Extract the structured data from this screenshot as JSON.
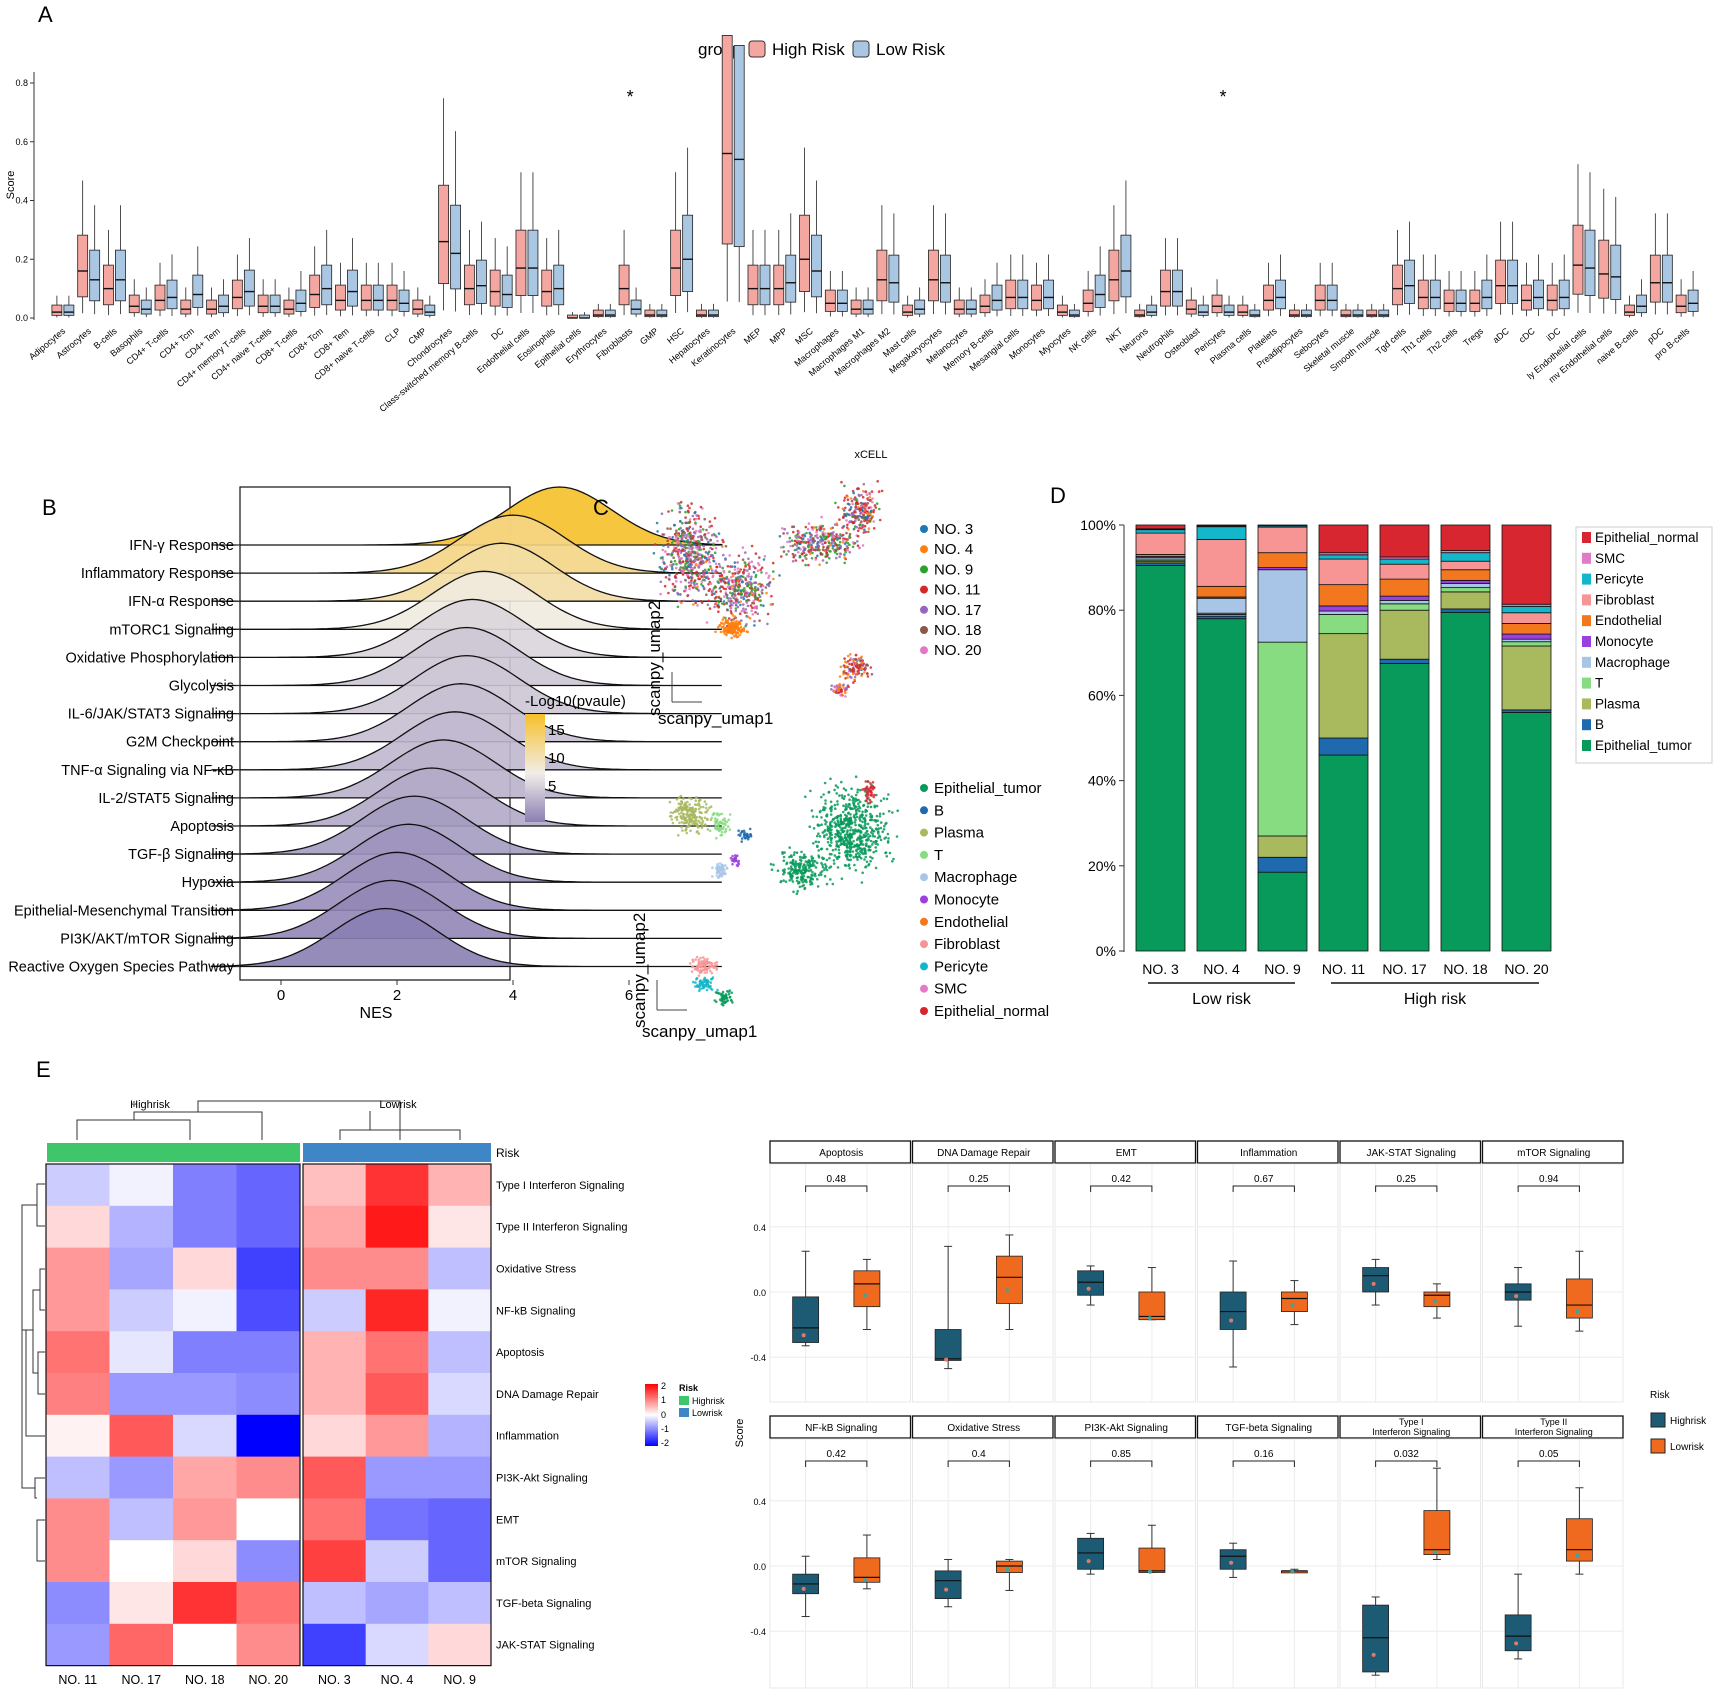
{
  "panel_labels": [
    "A",
    "B",
    "C",
    "D",
    "E"
  ],
  "colors": {
    "high_risk": "#f4a6a0",
    "low_risk": "#a9c6e3",
    "highrisk_dark": "#1d5b74",
    "lowrisk_orange": "#ef6a1e",
    "risk_green": "#3fc66a",
    "risk_blue": "#3f86c6"
  },
  "chart_data": [
    {
      "id": "A",
      "type": "box",
      "legend_title": "group",
      "legend": [
        "High Risk",
        "Low Risk"
      ],
      "ylabel": "Score",
      "xlabel": "xCELL",
      "ylim": [
        0,
        0.8
      ],
      "yticks": [
        "0.0",
        "0.2",
        "0.4",
        "0.6",
        "0.8"
      ],
      "significance_marker": "*",
      "significant": [
        "Fibroblasts",
        "Pericytes"
      ],
      "categories": [
        "Adipocytes",
        "Astrocytes",
        "B-cells",
        "Basophils",
        "CD4+ T-cells",
        "CD4+ Tcm",
        "CD4+ Tem",
        "CD4+ memory T-cells",
        "CD4+ naive T-cells",
        "CD8+ T-cells",
        "CD8+ Tcm",
        "CD8+ Tem",
        "CD8+ naive T-cells",
        "CLP",
        "CMP",
        "Chondrocytes",
        "Class-switched memory B-cells",
        "DC",
        "Endothelial cells",
        "Eosinophils",
        "Epithelial cells",
        "Erythrocytes",
        "Fibroblasts",
        "GMP",
        "HSC",
        "Hepatocytes",
        "Keratinocytes",
        "MEP",
        "MPP",
        "MSC",
        "Macrophages",
        "Macrophages M1",
        "Macrophages M2",
        "Mast cells",
        "Megakaryocytes",
        "Melanocytes",
        "Memory B-cells",
        "Mesangial cells",
        "Monocytes",
        "Myocytes",
        "NK cells",
        "NKT",
        "Neurons",
        "Neutrophils",
        "Osteoblast",
        "Pericytes",
        "Plasma cells",
        "Platelets",
        "Preadipocytes",
        "Sebocytes",
        "Skeletal muscle",
        "Smooth muscle",
        "Tgd cells",
        "Th1 cells",
        "Th2 cells",
        "Tregs",
        "aDC",
        "cDC",
        "iDC",
        "ly Endothelial cells",
        "mv Endothelial cells",
        "naive B-cells",
        "pDC",
        "pro B-cells"
      ],
      "median_high": [
        0.02,
        0.16,
        0.1,
        0.04,
        0.06,
        0.03,
        0.03,
        0.07,
        0.04,
        0.03,
        0.08,
        0.06,
        0.06,
        0.06,
        0.03,
        0.26,
        0.1,
        0.09,
        0.17,
        0.09,
        0.0,
        0.01,
        0.1,
        0.01,
        0.17,
        0.01,
        0.56,
        0.1,
        0.1,
        0.2,
        0.05,
        0.03,
        0.13,
        0.02,
        0.13,
        0.03,
        0.04,
        0.07,
        0.06,
        0.02,
        0.05,
        0.13,
        0.01,
        0.09,
        0.03,
        0.04,
        0.02,
        0.06,
        0.01,
        0.06,
        0.01,
        0.01,
        0.1,
        0.07,
        0.05,
        0.05,
        0.11,
        0.06,
        0.06,
        0.18,
        0.15,
        0.02,
        0.12,
        0.04
      ],
      "median_low": [
        0.02,
        0.13,
        0.13,
        0.03,
        0.07,
        0.08,
        0.04,
        0.09,
        0.04,
        0.05,
        0.1,
        0.09,
        0.06,
        0.05,
        0.02,
        0.22,
        0.11,
        0.08,
        0.17,
        0.1,
        0.0,
        0.01,
        0.03,
        0.01,
        0.2,
        0.01,
        0.54,
        0.1,
        0.12,
        0.16,
        0.05,
        0.03,
        0.12,
        0.03,
        0.12,
        0.03,
        0.06,
        0.07,
        0.07,
        0.01,
        0.08,
        0.16,
        0.02,
        0.09,
        0.02,
        0.02,
        0.01,
        0.07,
        0.01,
        0.06,
        0.01,
        0.01,
        0.11,
        0.07,
        0.05,
        0.07,
        0.11,
        0.07,
        0.07,
        0.17,
        0.14,
        0.04,
        0.12,
        0.05
      ]
    },
    {
      "id": "B",
      "type": "ridgeline",
      "xlabel": "NES",
      "xticks": [
        "0",
        "2",
        "4",
        "6"
      ],
      "colorbar_title": "-Log10(pvaule)",
      "colorbar_ticks": [
        "15",
        "10",
        "5"
      ],
      "categories": [
        "IFN-γ Response",
        "Inflammatory Response",
        "IFN-α Response",
        "mTORC1 Signaling",
        "Oxidative Phosphorylation",
        "Glycolysis",
        "IL-6/JAK/STAT3 Signaling",
        "G2M Checkpoint",
        "TNF-α Signaling via NF-κB",
        "IL-2/STAT5 Signaling",
        "Apoptosis",
        "TGF-β Signaling",
        "Hypoxia",
        "Epithelial-Mesenchymal Transition",
        "PI3K/AKT/mTOR Signaling",
        "Reactive Oxygen Species Pathway"
      ],
      "peak_nes": [
        4.8,
        4.0,
        3.8,
        3.5,
        3.3,
        3.2,
        3.2,
        3.1,
        3.0,
        2.8,
        2.6,
        2.3,
        2.2,
        2.0,
        1.9,
        1.8
      ],
      "neglog10p": [
        17,
        14,
        13,
        11,
        9,
        8,
        8,
        7.5,
        7,
        6.5,
        6,
        5,
        4.5,
        4,
        3.5,
        3
      ]
    },
    {
      "id": "C",
      "type": "scatter",
      "xlabel": "scanpy_umap1",
      "ylabel": "scanpy_umap2",
      "legend_samples": [
        "NO. 3",
        "NO. 4",
        "NO. 9",
        "NO. 11",
        "NO. 17",
        "NO. 18",
        "NO. 20"
      ],
      "legend_celltypes": [
        "Epithelial_tumor",
        "B",
        "Plasma",
        "T",
        "Macrophage",
        "Monocyte",
        "Endothelial",
        "Fibroblast",
        "Pericyte",
        "SMC",
        "Epithelial_normal"
      ]
    },
    {
      "id": "D",
      "type": "bar",
      "stacked": true,
      "categories": [
        "NO. 3",
        "NO. 4",
        "NO. 9",
        "NO. 11",
        "NO. 17",
        "NO. 18",
        "NO. 20"
      ],
      "groups": [
        {
          "label": "Low risk",
          "members": [
            "NO. 3",
            "NO. 4",
            "NO. 9"
          ]
        },
        {
          "label": "High risk",
          "members": [
            "NO. 11",
            "NO. 17",
            "NO. 18",
            "NO. 20"
          ]
        }
      ],
      "yticks": [
        "0%",
        "20%",
        "40%",
        "60%",
        "80%",
        "100%"
      ],
      "ylim": [
        0,
        100
      ],
      "legend_order": [
        "Epithelial_normal",
        "SMC",
        "Pericyte",
        "Fibroblast",
        "Endothelial",
        "Monocyte",
        "Macrophage",
        "T",
        "Plasma",
        "B",
        "Epithelial_tumor"
      ],
      "series": [
        {
          "name": "Epithelial_tumor",
          "color": "#079a5a",
          "values": [
            90.5,
            78.0,
            18.5,
            46.0,
            67.5,
            79.5,
            56.0
          ]
        },
        {
          "name": "B",
          "color": "#1f6aae",
          "values": [
            0.6,
            0.6,
            3.5,
            4.0,
            1.0,
            0.8,
            0.6
          ]
        },
        {
          "name": "Plasma",
          "color": "#a8b95e",
          "values": [
            0.4,
            0.4,
            5.0,
            24.5,
            11.5,
            4.0,
            15.0
          ]
        },
        {
          "name": "T",
          "color": "#87db80",
          "values": [
            0.3,
            0.3,
            45.5,
            4.5,
            1.5,
            1.0,
            1.0
          ]
        },
        {
          "name": "Macrophage",
          "color": "#a8c5e8",
          "values": [
            0.5,
            3.5,
            17.0,
            0.8,
            0.8,
            1.0,
            0.6
          ]
        },
        {
          "name": "Monocyte",
          "color": "#9b3fe0",
          "values": [
            0.3,
            0.3,
            0.5,
            1.2,
            1.0,
            0.7,
            1.2
          ]
        },
        {
          "name": "Endothelial",
          "color": "#f2771f",
          "values": [
            0.5,
            2.5,
            3.5,
            5.0,
            4.0,
            2.5,
            2.5
          ]
        },
        {
          "name": "Fibroblast",
          "color": "#f79494",
          "values": [
            5.0,
            11.0,
            6.0,
            6.0,
            3.5,
            2.0,
            2.5
          ]
        },
        {
          "name": "Pericyte",
          "color": "#14b6c9",
          "values": [
            0.8,
            3.0,
            0.3,
            1.0,
            1.2,
            2.0,
            1.5
          ]
        },
        {
          "name": "SMC",
          "color": "#e17ac8",
          "values": [
            0.2,
            0.2,
            0.2,
            0.5,
            0.5,
            0.5,
            0.5
          ]
        },
        {
          "name": "Epithelial_normal",
          "color": "#d82631",
          "values": [
            0.9,
            0.2,
            0.0,
            6.5,
            7.5,
            6.0,
            18.6
          ]
        }
      ]
    },
    {
      "id": "E-heatmap",
      "type": "heatmap",
      "columns": [
        "NO. 11",
        "NO. 17",
        "NO. 18",
        "NO. 20",
        "NO. 3",
        "NO. 4",
        "NO. 9"
      ],
      "column_groups": [
        {
          "label": "Highrisk",
          "span": 4
        },
        {
          "label": "Lowrisk",
          "span": 3
        }
      ],
      "annotation_label": "Risk",
      "rows": [
        "Type I Interferon Signaling",
        "Type II Interferon Signaling",
        "Oxidative Stress",
        "NF-kB Signaling",
        "Apoptosis",
        "DNA Damage Repair",
        "Inflammation",
        "PI3K-Akt Signaling",
        "EMT",
        "mTOR Signaling",
        "TGF-beta Signaling",
        "JAK-STAT Signaling"
      ],
      "values": [
        [
          -0.4,
          -0.1,
          -1.0,
          -1.2,
          0.5,
          1.6,
          0.6
        ],
        [
          0.3,
          -0.6,
          -1.0,
          -1.2,
          0.7,
          1.8,
          0.2
        ],
        [
          0.8,
          -0.7,
          0.3,
          -1.5,
          0.9,
          0.9,
          -0.5
        ],
        [
          0.8,
          -0.4,
          -0.1,
          -1.4,
          -0.4,
          1.7,
          -0.1
        ],
        [
          1.1,
          -0.2,
          -1.0,
          -1.0,
          0.6,
          1.1,
          -0.5
        ],
        [
          1.0,
          -0.8,
          -0.8,
          -0.9,
          0.6,
          1.3,
          -0.3
        ],
        [
          0.1,
          1.3,
          -0.3,
          -2.0,
          0.3,
          0.8,
          -0.6
        ],
        [
          -0.5,
          -0.8,
          0.7,
          0.9,
          1.3,
          -0.8,
          -0.8
        ],
        [
          0.9,
          -0.5,
          0.8,
          0.0,
          1.1,
          -1.1,
          -1.2
        ],
        [
          0.9,
          0.0,
          0.3,
          -0.9,
          1.5,
          -0.4,
          -1.2
        ],
        [
          -0.9,
          0.2,
          1.6,
          1.1,
          -0.5,
          -0.7,
          -0.5
        ],
        [
          -0.8,
          1.2,
          0.0,
          0.9,
          -1.5,
          -0.3,
          0.3
        ]
      ],
      "legend_ticks": [
        "2",
        "1",
        "0",
        "-1",
        "-2"
      ],
      "risk_legend": [
        "Highrisk",
        "Lowrisk"
      ]
    },
    {
      "id": "E-boxplots",
      "type": "box",
      "ylabel": "Score",
      "yticks": [
        "0.4",
        "0.0",
        "-0.4"
      ],
      "legend_title": "Risk",
      "legend": [
        "Highrisk",
        "Lowrisk"
      ],
      "facets": [
        {
          "title": "Apoptosis",
          "p": "0.48",
          "high": {
            "min": -0.33,
            "q1": -0.31,
            "med": -0.22,
            "q3": -0.03,
            "max": 0.25
          },
          "low": {
            "min": -0.23,
            "q1": -0.09,
            "med": 0.05,
            "q3": 0.13,
            "max": 0.2
          }
        },
        {
          "title": "DNA Damage Repair",
          "p": "0.25",
          "high": {
            "min": -0.47,
            "q1": -0.42,
            "med": -0.41,
            "q3": -0.23,
            "max": 0.28
          },
          "low": {
            "min": -0.23,
            "q1": -0.07,
            "med": 0.09,
            "q3": 0.22,
            "max": 0.35
          }
        },
        {
          "title": "EMT",
          "p": "0.42",
          "high": {
            "min": -0.08,
            "q1": -0.02,
            "med": 0.06,
            "q3": 0.13,
            "max": 0.16
          },
          "low": {
            "min": -0.17,
            "q1": -0.17,
            "med": -0.15,
            "q3": 0.0,
            "max": 0.15
          }
        },
        {
          "title": "Inflammation",
          "p": "0.67",
          "high": {
            "min": -0.46,
            "q1": -0.23,
            "med": -0.12,
            "q3": 0.0,
            "max": 0.19
          },
          "low": {
            "min": -0.2,
            "q1": -0.12,
            "med": -0.04,
            "q3": 0.0,
            "max": 0.07
          }
        },
        {
          "title": "JAK-STAT Signaling",
          "p": "0.25",
          "high": {
            "min": -0.08,
            "q1": 0.0,
            "med": 0.1,
            "q3": 0.15,
            "max": 0.2
          },
          "low": {
            "min": -0.16,
            "q1": -0.09,
            "med": -0.02,
            "q3": 0.0,
            "max": 0.05
          }
        },
        {
          "title": "mTOR Signaling",
          "p": "0.94",
          "high": {
            "min": -0.21,
            "q1": -0.05,
            "med": 0.0,
            "q3": 0.05,
            "max": 0.15
          },
          "low": {
            "min": -0.24,
            "q1": -0.16,
            "med": -0.08,
            "q3": 0.08,
            "max": 0.25
          }
        },
        {
          "title": "NF-kB Signaling",
          "p": "0.42",
          "high": {
            "min": -0.31,
            "q1": -0.17,
            "med": -0.11,
            "q3": -0.05,
            "max": 0.06
          },
          "low": {
            "min": -0.14,
            "q1": -0.1,
            "med": -0.07,
            "q3": 0.05,
            "max": 0.19
          }
        },
        {
          "title": "Oxidative Stress",
          "p": "0.4",
          "high": {
            "min": -0.25,
            "q1": -0.2,
            "med": -0.09,
            "q3": -0.03,
            "max": 0.04
          },
          "low": {
            "min": -0.15,
            "q1": -0.04,
            "med": 0.0,
            "q3": 0.03,
            "max": 0.04
          }
        },
        {
          "title": "PI3K-Akt Signaling",
          "p": "0.85",
          "high": {
            "min": -0.05,
            "q1": -0.02,
            "med": 0.08,
            "q3": 0.17,
            "max": 0.2
          },
          "low": {
            "min": -0.04,
            "q1": -0.04,
            "med": -0.03,
            "q3": 0.11,
            "max": 0.25
          }
        },
        {
          "title": "TGF-beta Signaling",
          "p": "0.16",
          "high": {
            "min": -0.07,
            "q1": -0.02,
            "med": 0.06,
            "q3": 0.1,
            "max": 0.14
          },
          "low": {
            "min": -0.04,
            "q1": -0.04,
            "med": -0.03,
            "q3": -0.03,
            "max": -0.02
          }
        },
        {
          "title": "Type I Interferon Signaling",
          "p": "0.032",
          "high": {
            "min": -0.67,
            "q1": -0.65,
            "med": -0.44,
            "q3": -0.24,
            "max": -0.19
          },
          "low": {
            "min": 0.04,
            "q1": 0.07,
            "med": 0.1,
            "q3": 0.34,
            "max": 0.6
          }
        },
        {
          "title": "Type II Interferon Signaling",
          "p": "0.05",
          "high": {
            "min": -0.57,
            "q1": -0.52,
            "med": -0.43,
            "q3": -0.3,
            "max": -0.05
          },
          "low": {
            "min": -0.05,
            "q1": 0.03,
            "med": 0.1,
            "q3": 0.29,
            "max": 0.48
          }
        }
      ]
    }
  ]
}
